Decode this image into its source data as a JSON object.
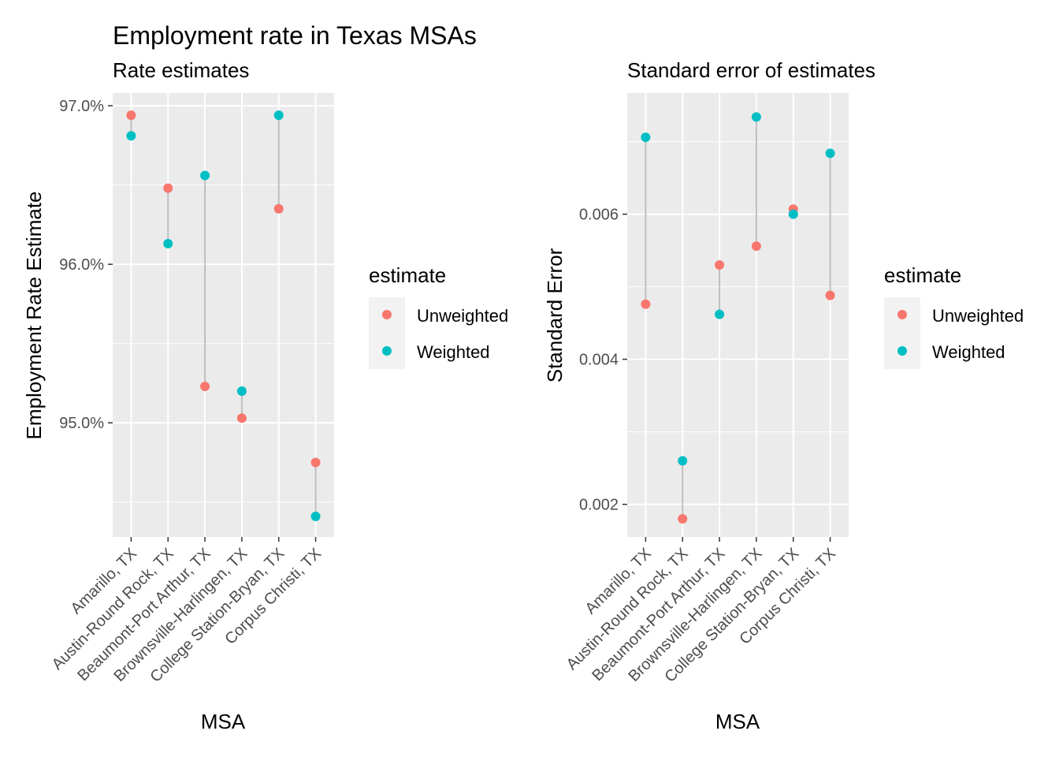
{
  "title": "Employment rate in Texas MSAs",
  "colors": {
    "Unweighted": "#F8766D",
    "Weighted": "#00BFC4",
    "panel_bg": "#EBEBEB",
    "grid": "#FFFFFF",
    "segment": "#BEBEBE",
    "tick_text": "#4D4D4D"
  },
  "chart_data": [
    {
      "type": "scatter",
      "subtitle": "Rate estimates",
      "xlabel": "MSA",
      "ylabel": "Employment Rate Estimate",
      "categories": [
        "Amarillo, TX",
        "Austin-Round Rock, TX",
        "Beaumont-Port Arthur, TX",
        "Brownsville-Harlingen, TX",
        "College Station-Bryan, TX",
        "Corpus Christi, TX"
      ],
      "series": [
        {
          "name": "Unweighted",
          "values": [
            96.94,
            96.48,
            95.23,
            95.03,
            96.35,
            94.75
          ]
        },
        {
          "name": "Weighted",
          "values": [
            96.81,
            96.13,
            96.56,
            95.2,
            96.94,
            94.41
          ]
        }
      ],
      "ylim": [
        94.28,
        97.08
      ],
      "yticks": [
        95.0,
        96.0,
        97.0
      ],
      "ytick_labels": [
        "95.0%",
        "96.0%",
        "97.0%"
      ],
      "segments": true,
      "legend": {
        "title": "estimate",
        "entries": [
          "Unweighted",
          "Weighted"
        ],
        "position": "right"
      },
      "grid": true
    },
    {
      "type": "scatter",
      "subtitle": "Standard error of estimates",
      "xlabel": "MSA",
      "ylabel": "Standard Error",
      "categories": [
        "Amarillo, TX",
        "Austin-Round Rock, TX",
        "Beaumont-Port Arthur, TX",
        "Brownsville-Harlingen, TX",
        "College Station-Bryan, TX",
        "Corpus Christi, TX"
      ],
      "series": [
        {
          "name": "Unweighted",
          "values": [
            0.00476,
            0.0018,
            0.0053,
            0.00556,
            0.00607,
            0.00488
          ]
        },
        {
          "name": "Weighted",
          "values": [
            0.00706,
            0.0026,
            0.00462,
            0.00734,
            0.006,
            0.00684
          ]
        }
      ],
      "ylim": [
        0.00155,
        0.00767
      ],
      "yticks": [
        0.002,
        0.004,
        0.006
      ],
      "ytick_labels": [
        "0.002",
        "0.004",
        "0.006"
      ],
      "segments": true,
      "legend": {
        "title": "estimate",
        "entries": [
          "Unweighted",
          "Weighted"
        ],
        "position": "right"
      },
      "grid": true
    }
  ]
}
